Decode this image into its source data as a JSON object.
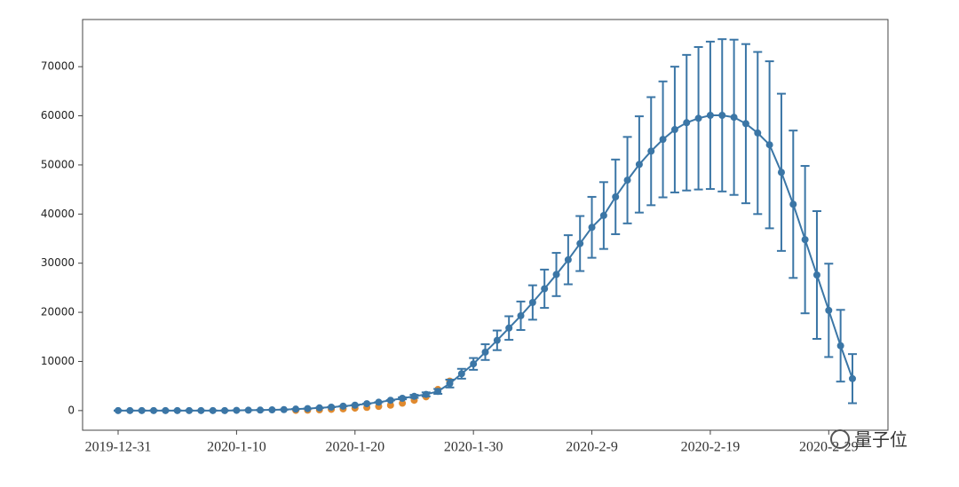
{
  "chart_data": {
    "type": "line",
    "categories": [
      "2019-12-31",
      null,
      null,
      null,
      null,
      null,
      null,
      null,
      null,
      null,
      "2020-1-10",
      null,
      null,
      null,
      null,
      null,
      null,
      null,
      null,
      null,
      "2020-1-20",
      null,
      null,
      null,
      null,
      null,
      null,
      null,
      null,
      null,
      "2020-1-30",
      null,
      null,
      null,
      null,
      null,
      null,
      null,
      null,
      null,
      "2020-2-9",
      null,
      null,
      null,
      null,
      null,
      null,
      null,
      null,
      null,
      "2020-2-19",
      null,
      null,
      null,
      null,
      null,
      null,
      null,
      null,
      null,
      "2020-2-29",
      null,
      null
    ],
    "xlim": [
      -3,
      65
    ],
    "ylim": [
      -4000,
      79600
    ],
    "yticks": [
      0,
      10000,
      20000,
      30000,
      40000,
      50000,
      60000,
      70000
    ],
    "series": [
      {
        "mode": "scatter",
        "color": "#e08a2f",
        "values": [
          null,
          null,
          null,
          null,
          null,
          null,
          null,
          null,
          null,
          null,
          null,
          null,
          null,
          null,
          null,
          50,
          80,
          150,
          250,
          350,
          500,
          650,
          850,
          1100,
          1500,
          2100,
          2800,
          4300,
          6000,
          null,
          null,
          null,
          null,
          null,
          null,
          null,
          null,
          null,
          null,
          null,
          null,
          null,
          null,
          null,
          null,
          null,
          null,
          null,
          null,
          null,
          null,
          null,
          null,
          null,
          null,
          null,
          null,
          null,
          null,
          null,
          null,
          null,
          null
        ]
      },
      {
        "mode": "line",
        "color": "#3b76a6",
        "values": [
          0,
          0,
          0,
          0,
          0,
          0,
          0,
          0,
          0,
          0,
          50,
          80,
          100,
          150,
          200,
          300,
          400,
          550,
          700,
          900,
          1100,
          1400,
          1700,
          2100,
          2500,
          2900,
          3300,
          3900,
          5500,
          7500,
          9500,
          11900,
          14300,
          16800,
          19300,
          22000,
          24800,
          27700,
          30700,
          34000,
          37300,
          39700,
          43500,
          46900,
          50100,
          52800,
          55200,
          57200,
          58600,
          59500,
          60100,
          60100,
          59700,
          58400,
          56500,
          54100,
          48500,
          42000,
          34800,
          27600,
          20400,
          13200,
          6500
        ],
        "errors": [
          0,
          0,
          0,
          0,
          0,
          0,
          0,
          0,
          0,
          0,
          0,
          0,
          0,
          0,
          0,
          0,
          0,
          0,
          0,
          0,
          0,
          0,
          0,
          0,
          200,
          300,
          400,
          500,
          800,
          1000,
          1200,
          1600,
          2000,
          2400,
          2900,
          3500,
          3900,
          4400,
          5000,
          5600,
          6200,
          6800,
          7600,
          8800,
          9800,
          11000,
          11800,
          12800,
          13800,
          14500,
          15000,
          15500,
          15800,
          16200,
          16500,
          17000,
          16000,
          15000,
          15000,
          13000,
          9500,
          7300,
          5000
        ]
      }
    ]
  },
  "watermark": "量子位"
}
